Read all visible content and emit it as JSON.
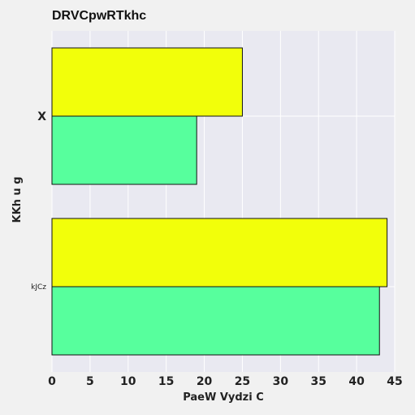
{
  "chart_data": {
    "type": "bar",
    "orientation": "horizontal",
    "title": "DRVCpwRTkhc",
    "xlabel": "PaeW Vydzi   C",
    "ylabel": "KKh u g",
    "xlim": [
      0,
      45
    ],
    "xticks": [
      "0",
      "5",
      "10",
      "15",
      "20",
      "25",
      "30",
      "35",
      "40",
      "45"
    ],
    "grid": true,
    "legend": "none",
    "categories": [
      "X",
      "kJCz"
    ],
    "series": [
      {
        "color": "#f2ff0a",
        "values": [
          25,
          44
        ]
      },
      {
        "color": "#57ff9d",
        "values": [
          19,
          43
        ]
      }
    ],
    "colors": {
      "plot_background": "#e9e9f1",
      "page_background": "#f1f1f1",
      "grid": "#ffffff",
      "bar_edge": "#111111"
    }
  }
}
